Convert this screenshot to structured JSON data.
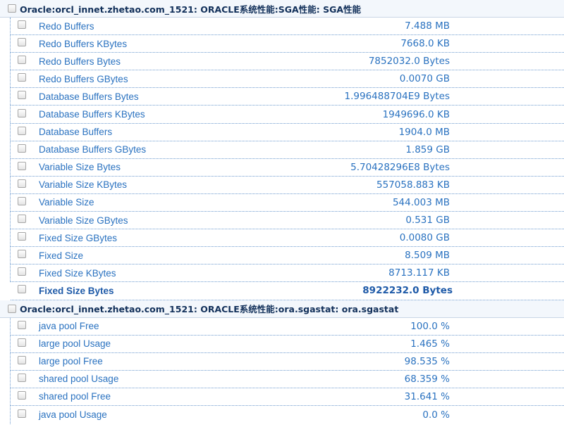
{
  "groups": [
    {
      "title": "Oracle:orcl_innet.zhetao.com_1521: ORACLE系统性能:SGA性能: SGA性能",
      "rows": [
        {
          "label": "Redo Buffers",
          "value": "7.488 MB"
        },
        {
          "label": "Redo Buffers KBytes",
          "value": "7668.0 KB"
        },
        {
          "label": "Redo Buffers Bytes",
          "value": "7852032.0 Bytes"
        },
        {
          "label": "Redo Buffers GBytes",
          "value": "0.0070 GB"
        },
        {
          "label": "Database Buffers Bytes",
          "value": "1.996488704E9 Bytes"
        },
        {
          "label": "Database Buffers KBytes",
          "value": "1949696.0 KB"
        },
        {
          "label": "Database Buffers",
          "value": "1904.0 MB"
        },
        {
          "label": "Database Buffers GBytes",
          "value": "1.859 GB"
        },
        {
          "label": "Variable Size Bytes",
          "value": "5.70428296E8 Bytes"
        },
        {
          "label": "Variable Size KBytes",
          "value": "557058.883 KB"
        },
        {
          "label": "Variable Size",
          "value": "544.003 MB"
        },
        {
          "label": "Variable Size GBytes",
          "value": "0.531 GB"
        },
        {
          "label": "Fixed Size GBytes",
          "value": "0.0080 GB"
        },
        {
          "label": "Fixed Size",
          "value": "8.509 MB"
        },
        {
          "label": "Fixed Size KBytes",
          "value": "8713.117 KB"
        },
        {
          "label": "Fixed Size Bytes",
          "value": "8922232.0 Bytes"
        }
      ]
    },
    {
      "title": "Oracle:orcl_innet.zhetao.com_1521: ORACLE系统性能:ora.sgastat: ora.sgastat",
      "rows": [
        {
          "label": "java pool Free",
          "value": "100.0 %"
        },
        {
          "label": "large pool Usage",
          "value": "1.465 %"
        },
        {
          "label": "large pool Free",
          "value": "98.535 %"
        },
        {
          "label": "shared pool Usage",
          "value": "68.359 %"
        },
        {
          "label": "shared pool Free",
          "value": "31.641 %"
        },
        {
          "label": "java pool Usage",
          "value": "0.0 %"
        }
      ]
    }
  ]
}
